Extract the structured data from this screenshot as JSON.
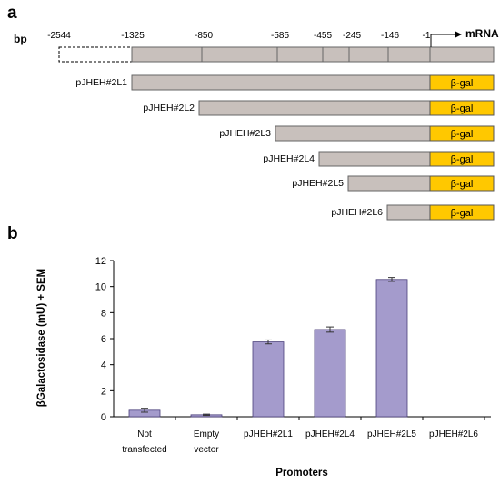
{
  "panels": {
    "a": "a",
    "b": "b"
  },
  "panel_a": {
    "scale_label": "bp",
    "mrna_label": "mRNA",
    "positions": [
      "-2544",
      "-1325",
      "-850",
      "-585",
      "-455",
      "-245",
      "-146",
      "-1"
    ],
    "reporter_label": "β-gal",
    "constructs": [
      {
        "name": "pJHEH#2L1",
        "start": "-1325"
      },
      {
        "name": "pJHEH#2L2",
        "start": "-850"
      },
      {
        "name": "pJHEH#2L3",
        "start": "-585"
      },
      {
        "name": "pJHEH#2L4",
        "start": "-455"
      },
      {
        "name": "pJHEH#2L5",
        "start": "-245"
      },
      {
        "name": "pJHEH#2L6",
        "start": "-146"
      }
    ]
  },
  "colors": {
    "bar": "#a49bcc",
    "bar_edge": "#4a3f7a",
    "gene": "#c8c0bc",
    "gal": "#ffc800"
  },
  "chart_data": {
    "type": "bar",
    "categories": [
      "Not\ntransfected",
      "Empty\nvector",
      "pJHEH#2L1",
      "pJHEH#2L4",
      "pJHEH#2L5",
      "pJHEH#2L6"
    ],
    "values": [
      0.5,
      0.15,
      5.75,
      6.7,
      10.55,
      0
    ],
    "errors": [
      0.15,
      0.05,
      0.15,
      0.2,
      0.15,
      0
    ],
    "ylabel": "βGalactosidase (mU) + SEM",
    "xlabel": "Promoters",
    "ylim": [
      0,
      12
    ],
    "yticks": [
      0,
      2,
      4,
      6,
      8,
      10,
      12
    ],
    "grid": false
  }
}
